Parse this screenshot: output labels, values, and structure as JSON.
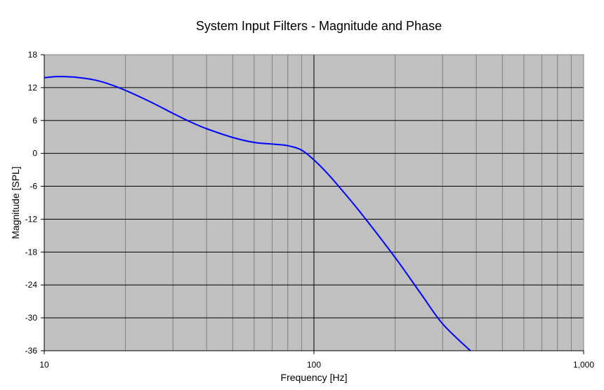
{
  "chart_data": {
    "type": "line",
    "title": "System Input Filters - Magnitude and Phase",
    "xlabel": "Frequency [Hz]",
    "ylabel": "Magnitude [SPL]",
    "x_scale": "log",
    "xlim": [
      10,
      1000
    ],
    "ylim": [
      -36,
      18
    ],
    "x_ticks": [
      10,
      100,
      1000
    ],
    "x_tick_labels": [
      "10",
      "100",
      "1,000"
    ],
    "y_ticks": [
      18,
      12,
      6,
      0,
      -6,
      -12,
      -18,
      -24,
      -30,
      -36
    ],
    "grid": true,
    "plot_background": "#c0c0c0",
    "series": [
      {
        "color": "#0000ff",
        "x": [
          10,
          11,
          12,
          13,
          15,
          17,
          20,
          25,
          30,
          35,
          40,
          50,
          60,
          70,
          80,
          90,
          100,
          110,
          125,
          150,
          200,
          250,
          300,
          380
        ],
        "y": [
          13.8,
          14.0,
          14.0,
          13.9,
          13.5,
          12.8,
          11.5,
          9.3,
          7.3,
          5.7,
          4.5,
          2.9,
          2.0,
          1.7,
          1.4,
          0.6,
          -1.2,
          -3.2,
          -6.3,
          -11.0,
          -19.0,
          -25.7,
          -31.1,
          -36.0
        ]
      }
    ]
  }
}
